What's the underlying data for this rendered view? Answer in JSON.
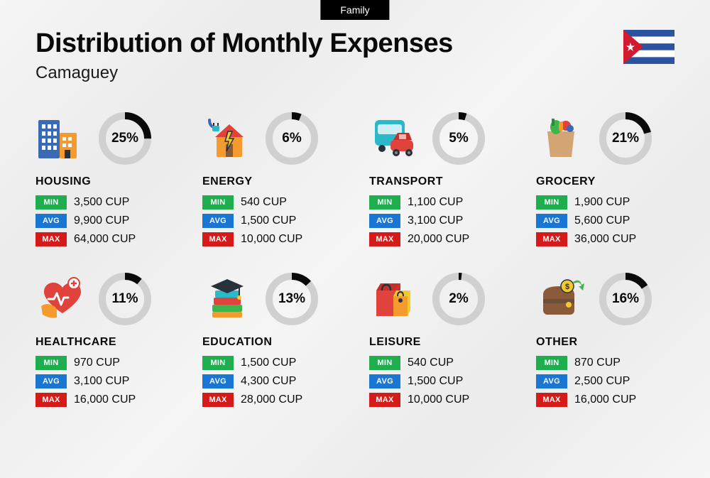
{
  "badge": "Family",
  "title": "Distribution of Monthly Expenses",
  "subtitle": "Camaguey",
  "currency": "CUP",
  "labels": {
    "min": "MIN",
    "avg": "AVG",
    "max": "MAX"
  },
  "colors": {
    "min_badge": "#1fae4d",
    "avg_badge": "#1976d2",
    "max_badge": "#d51a1a",
    "donut_fg": "#0a0a0a",
    "donut_bg": "#d0d0d0",
    "text": "#0a0a0a",
    "badge_bg": "#000000",
    "flag_blue": "#2b53a0",
    "flag_red": "#d01c2e",
    "flag_white": "#ffffff"
  },
  "categories": [
    {
      "name": "HOUSING",
      "pct": 25,
      "min": "3,500",
      "avg": "9,900",
      "max": "64,000",
      "icon": "buildings"
    },
    {
      "name": "ENERGY",
      "pct": 6,
      "min": "540",
      "avg": "1,500",
      "max": "10,000",
      "icon": "energy"
    },
    {
      "name": "TRANSPORT",
      "pct": 5,
      "min": "1,100",
      "avg": "3,100",
      "max": "20,000",
      "icon": "transport"
    },
    {
      "name": "GROCERY",
      "pct": 21,
      "min": "1,900",
      "avg": "5,600",
      "max": "36,000",
      "icon": "grocery"
    },
    {
      "name": "HEALTHCARE",
      "pct": 11,
      "min": "970",
      "avg": "3,100",
      "max": "16,000",
      "icon": "healthcare"
    },
    {
      "name": "EDUCATION",
      "pct": 13,
      "min": "1,500",
      "avg": "4,300",
      "max": "28,000",
      "icon": "education"
    },
    {
      "name": "LEISURE",
      "pct": 2,
      "min": "540",
      "avg": "1,500",
      "max": "10,000",
      "icon": "leisure"
    },
    {
      "name": "OTHER",
      "pct": 16,
      "min": "870",
      "avg": "2,500",
      "max": "16,000",
      "icon": "other"
    }
  ],
  "donut": {
    "radius": 32,
    "stroke": 10
  },
  "icon_palette": {
    "blue": "#3a6ab5",
    "blue2": "#2b53a0",
    "teal": "#2bb9c9",
    "red": "#e0423c",
    "red2": "#c63028",
    "orange": "#f59a2e",
    "yellow": "#f5c92e",
    "green": "#3eb54b",
    "green2": "#2d8a38",
    "brown": "#8a5a3a",
    "dark": "#29313a",
    "pink": "#e86aa6",
    "purple": "#7a5ab5",
    "tan": "#d4a574"
  }
}
